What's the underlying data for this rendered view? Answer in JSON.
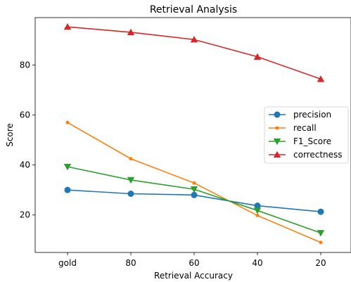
{
  "chart_data": {
    "type": "line",
    "title": "Retrieval Analysis",
    "xlabel": "Retrieval Accuracy",
    "ylabel": "Score",
    "categories": [
      "gold",
      "80",
      "60",
      "40",
      "20"
    ],
    "ylim": [
      5,
      99
    ],
    "yticks": [
      20,
      40,
      60,
      80
    ],
    "grid": false,
    "legend_position": "center-right",
    "series": [
      {
        "name": "precision",
        "marker": "circle",
        "color": "#1f77b4",
        "values": [
          30.0,
          28.5,
          28.0,
          23.7,
          21.3
        ]
      },
      {
        "name": "recall",
        "marker": "dot",
        "color": "#ff7f0e",
        "values": [
          57.0,
          42.5,
          32.8,
          19.8,
          9.0
        ]
      },
      {
        "name": "F1_Score",
        "marker": "triangle-down",
        "color": "#2ca02c",
        "values": [
          39.3,
          34.0,
          30.3,
          21.8,
          12.8
        ]
      },
      {
        "name": "correctness",
        "marker": "triangle-up",
        "color": "#d62728",
        "values": [
          95.3,
          93.1,
          90.2,
          83.3,
          74.4
        ]
      }
    ]
  }
}
